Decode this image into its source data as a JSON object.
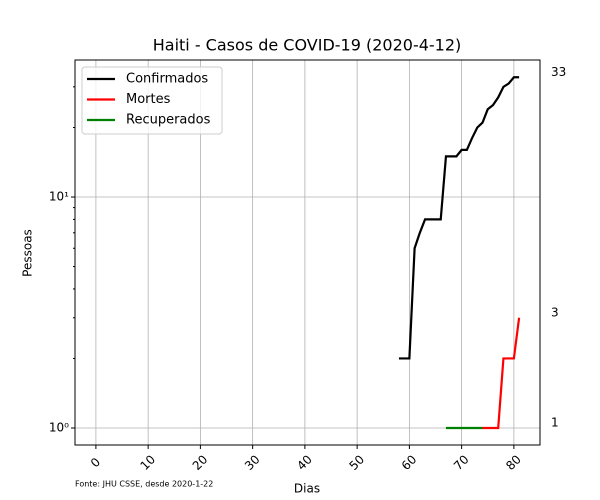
{
  "chart_data": {
    "type": "line",
    "title": "Haiti - Casos de COVID-19 (2020-4-12)",
    "x_label": "Dias",
    "y_label": "Pessoas",
    "source": "Fonte: JHU CSSE, desde 2020-1-22",
    "x": [
      58,
      59,
      60,
      61,
      62,
      63,
      64,
      65,
      66,
      67,
      68,
      69,
      70,
      71,
      72,
      73,
      74,
      75,
      76,
      77,
      78,
      79,
      80,
      81
    ],
    "series": [
      {
        "name": "Confirmados",
        "color": "#000000",
        "values": [
          2,
          2,
          2,
          6,
          7,
          8,
          8,
          8,
          8,
          15,
          15,
          15,
          16,
          16,
          18,
          20,
          21,
          24,
          25,
          27,
          30,
          31,
          33,
          33
        ]
      },
      {
        "name": "Mortes",
        "color": "#ff0000",
        "values": [
          null,
          null,
          null,
          null,
          null,
          null,
          null,
          null,
          null,
          null,
          null,
          null,
          null,
          null,
          null,
          null,
          1,
          1,
          1,
          1,
          2,
          2,
          2,
          3
        ]
      },
      {
        "name": "Recuperados",
        "color": "#008000",
        "values": [
          null,
          null,
          null,
          null,
          null,
          null,
          null,
          null,
          null,
          1,
          1,
          1,
          1,
          1,
          1,
          1,
          1,
          null,
          null,
          null,
          null,
          null,
          null,
          null
        ]
      }
    ],
    "end_labels": [
      33,
      3,
      1
    ],
    "xlim": [
      -4,
      85
    ],
    "xticks": [
      0,
      10,
      20,
      30,
      40,
      50,
      60,
      70,
      80
    ],
    "ylim": [
      0.844,
      39.2
    ],
    "y_scale": "log",
    "yticks": [
      {
        "value": 1,
        "label": "10⁰"
      },
      {
        "value": 10,
        "label": "10¹"
      }
    ],
    "yminorticks": [
      2,
      3,
      4,
      5,
      6,
      7,
      8,
      9,
      20,
      30
    ],
    "grid": true,
    "legend": "upper left"
  }
}
